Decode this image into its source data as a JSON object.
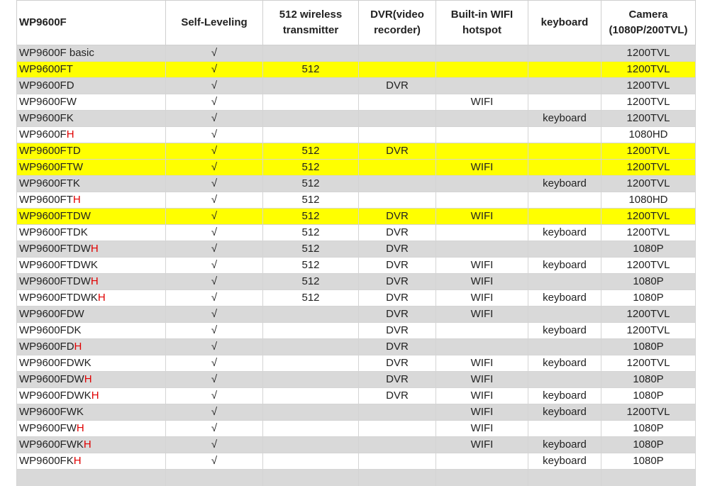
{
  "table": {
    "header": [
      "WP9600F",
      "Self-Leveling",
      "512 wireless transmitter",
      "DVR(video recorder)",
      "Built-in WIFI hotspot",
      "keyboard",
      "Camera (1080P/200TVL)"
    ],
    "rows": [
      {
        "model": "WP9600F basic",
        "cells": [
          "√",
          null,
          null,
          null,
          null,
          "1200TVL"
        ]
      },
      {
        "model": "WP9600FT",
        "cells": [
          "√",
          "512",
          null,
          null,
          null,
          "1200TVL"
        ],
        "highlight": true
      },
      {
        "model": "WP9600FD",
        "cells": [
          "√",
          null,
          "DVR",
          null,
          null,
          "1200TVL"
        ]
      },
      {
        "model": "WP9600FW",
        "cells": [
          "√",
          null,
          null,
          "WIFI",
          null,
          "1200TVL"
        ]
      },
      {
        "model": "WP9600FK",
        "cells": [
          "√",
          null,
          null,
          null,
          "keyboard",
          "1200TVL"
        ]
      },
      {
        "model": "WP9600F",
        "suffix": "H",
        "cells": [
          "√",
          null,
          null,
          null,
          null,
          "1080HD"
        ]
      },
      {
        "model": "WP9600FTD",
        "cells": [
          "√",
          "512",
          "DVR",
          null,
          null,
          "1200TVL"
        ],
        "highlight": true
      },
      {
        "model": "WP9600FTW",
        "cells": [
          "√",
          "512",
          null,
          "WIFI",
          null,
          "1200TVL"
        ],
        "highlight": true
      },
      {
        "model": "WP9600FTK",
        "cells": [
          "√",
          "512",
          null,
          null,
          "keyboard",
          "1200TVL"
        ]
      },
      {
        "model": "WP9600FT",
        "suffix": "H",
        "cells": [
          "√",
          "512",
          null,
          null,
          null,
          "1080HD"
        ]
      },
      {
        "model": "WP9600FTDW",
        "cells": [
          "√",
          "512",
          "DVR",
          "WIFI",
          null,
          "1200TVL"
        ],
        "highlight": true
      },
      {
        "model": "WP9600FTDK",
        "cells": [
          "√",
          "512",
          "DVR",
          null,
          "keyboard",
          "1200TVL"
        ]
      },
      {
        "model": "WP9600FTDW",
        "suffix": "H",
        "cells": [
          "√",
          "512",
          "DVR",
          null,
          null,
          "1080P"
        ]
      },
      {
        "model": "WP9600FTDWK",
        "cells": [
          "√",
          "512",
          "DVR",
          "WIFI",
          "keyboard",
          "1200TVL"
        ]
      },
      {
        "model": "WP9600FTDW",
        "suffix": "H",
        "cells": [
          "√",
          "512",
          "DVR",
          "WIFI",
          null,
          "1080P"
        ]
      },
      {
        "model": "WP9600FTDWK",
        "suffix": "H",
        "cells": [
          "√",
          "512",
          "DVR",
          "WIFI",
          "keyboard",
          "1080P"
        ]
      },
      {
        "model": "WP9600FDW",
        "cells": [
          "√",
          null,
          "DVR",
          "WIFI",
          null,
          "1200TVL"
        ]
      },
      {
        "model": "WP9600FDK",
        "cells": [
          "√",
          null,
          "DVR",
          null,
          "keyboard",
          "1200TVL"
        ]
      },
      {
        "model": "WP9600FD",
        "suffix": "H",
        "cells": [
          "√",
          null,
          "DVR",
          null,
          null,
          "1080P"
        ]
      },
      {
        "model": "WP9600FDWK",
        "cells": [
          "√",
          null,
          "DVR",
          "WIFI",
          "keyboard",
          "1200TVL"
        ]
      },
      {
        "model": "WP9600FDW",
        "suffix": "H",
        "cells": [
          "√",
          null,
          "DVR",
          "WIFI",
          null,
          "1080P"
        ]
      },
      {
        "model": "WP9600FDWK",
        "suffix": "H",
        "cells": [
          "√",
          null,
          "DVR",
          "WIFI",
          "keyboard",
          "1080P"
        ]
      },
      {
        "model": "WP9600FWK",
        "cells": [
          "√",
          null,
          null,
          "WIFI",
          "keyboard",
          "1200TVL"
        ]
      },
      {
        "model": "WP9600FW",
        "suffix": "H",
        "cells": [
          "√",
          null,
          null,
          "WIFI",
          null,
          "1080P"
        ]
      },
      {
        "model": "WP9600FWK",
        "suffix": "H",
        "cells": [
          "√",
          null,
          null,
          "WIFI",
          "keyboard",
          "1080P"
        ]
      },
      {
        "model": "WP9600FK",
        "suffix": "H",
        "cells": [
          "√",
          null,
          null,
          null,
          "keyboard",
          "1080P"
        ]
      }
    ]
  }
}
